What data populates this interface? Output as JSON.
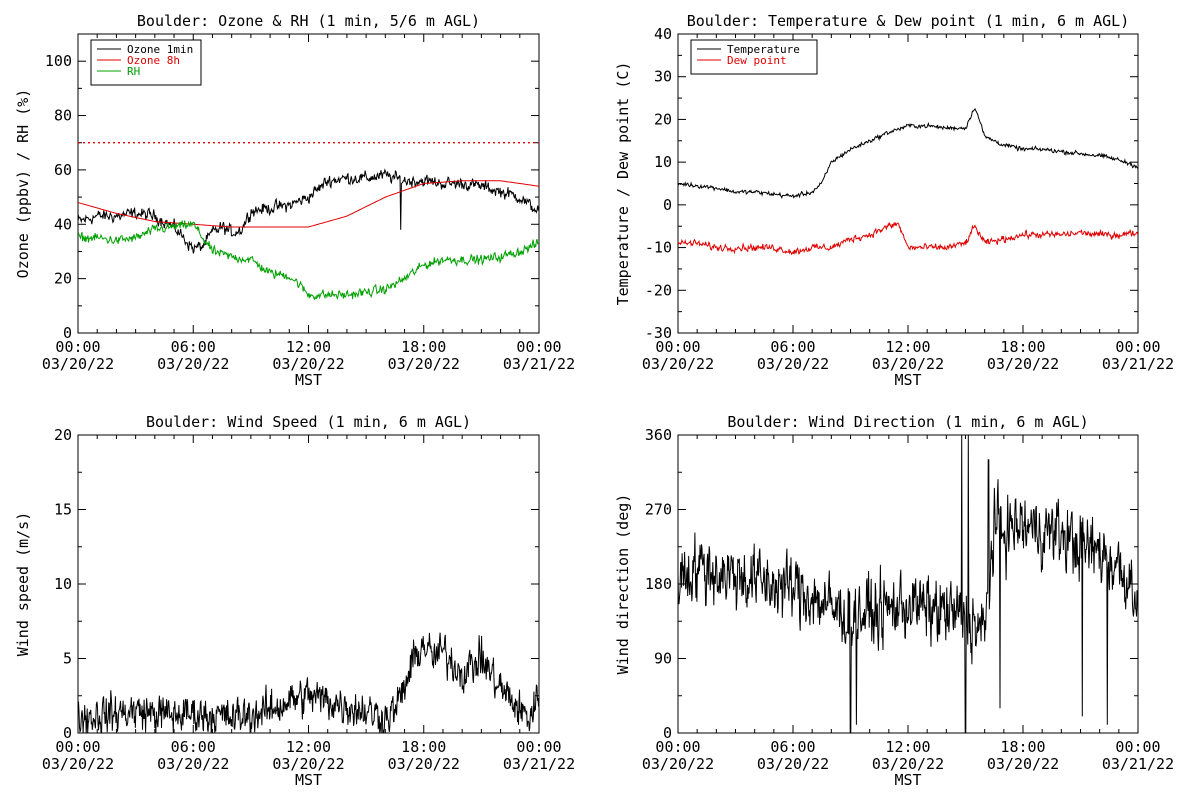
{
  "colors": {
    "black": "#000000",
    "red": "#e00000",
    "green": "#00a000"
  },
  "chart_data": [
    {
      "type": "line",
      "title": "Boulder: Ozone & RH (1 min, 5/6 m AGL)",
      "xlabel": "MST",
      "ylabel": "Ozone (ppbv) / RH (%)",
      "xlim": [
        0,
        24
      ],
      "ylim": [
        0,
        110
      ],
      "yticks": [
        0,
        20,
        40,
        60,
        80,
        100
      ],
      "xticks": [
        {
          "t1": "00:00",
          "t2": "03/20/22"
        },
        {
          "t1": "06:00",
          "t2": "03/20/22"
        },
        {
          "t1": "12:00",
          "t2": "03/20/22"
        },
        {
          "t1": "18:00",
          "t2": "03/20/22"
        },
        {
          "t1": "00:00",
          "t2": "03/21/22"
        }
      ],
      "reference_line": {
        "y": 70,
        "color": "#e00000",
        "style": "dotted"
      },
      "legend": "top-left",
      "series": [
        {
          "name": "Ozone 1min",
          "color": "#000000",
          "x": [
            0,
            1,
            2,
            3,
            4,
            5,
            6,
            6.5,
            7,
            7.5,
            8,
            8.5,
            9,
            10,
            11,
            12,
            13,
            14,
            15,
            16,
            16.5,
            17,
            18,
            19,
            20,
            21,
            22,
            23,
            23.5,
            24
          ],
          "y": [
            41,
            43,
            43,
            44,
            43,
            39,
            31,
            32,
            37,
            39,
            37,
            38,
            45,
            46,
            47,
            50,
            56,
            57,
            57,
            58,
            57,
            56,
            56,
            55,
            55,
            54,
            52,
            50,
            47,
            45
          ]
        },
        {
          "name": "Ozone 8h",
          "color": "#e00000",
          "x": [
            0,
            2,
            4,
            6,
            8,
            10,
            12,
            14,
            16,
            18,
            20,
            22,
            24
          ],
          "y": [
            48,
            44,
            41,
            40,
            39,
            39,
            39,
            43,
            50,
            55,
            56,
            56,
            54
          ]
        },
        {
          "name": "RH",
          "color": "#00a000",
          "x": [
            0,
            1,
            2,
            3,
            4,
            5,
            6,
            7,
            8,
            9,
            10,
            11,
            11.5,
            12,
            13,
            14,
            15,
            16,
            17,
            18,
            19,
            20,
            21,
            22,
            23,
            24
          ],
          "y": [
            35,
            35,
            34,
            35,
            38,
            39,
            40,
            30,
            28,
            27,
            22,
            21,
            18,
            14,
            14,
            14,
            15,
            16,
            20,
            25,
            27,
            27,
            27,
            28,
            30,
            33
          ]
        }
      ]
    },
    {
      "type": "line",
      "title": "Boulder: Temperature & Dew point (1 min, 6 m AGL)",
      "xlabel": "MST",
      "ylabel": "Temperature / Dew point (C)",
      "xlim": [
        0,
        24
      ],
      "ylim": [
        -30,
        40
      ],
      "yticks": [
        -30,
        -20,
        -10,
        0,
        10,
        20,
        30,
        40
      ],
      "xticks": [
        {
          "t1": "00:00",
          "t2": "03/20/22"
        },
        {
          "t1": "06:00",
          "t2": "03/20/22"
        },
        {
          "t1": "12:00",
          "t2": "03/20/22"
        },
        {
          "t1": "18:00",
          "t2": "03/20/22"
        },
        {
          "t1": "00:00",
          "t2": "03/21/22"
        }
      ],
      "legend": "top-left",
      "series": [
        {
          "name": "Temperature",
          "color": "#000000",
          "x": [
            0,
            1,
            2,
            3,
            4,
            5,
            6,
            7,
            7.5,
            8,
            9,
            10,
            11,
            12,
            13,
            14,
            15,
            15.5,
            16,
            17,
            18,
            19,
            20,
            21,
            22,
            23,
            24
          ],
          "y": [
            5,
            4.5,
            4,
            3,
            3,
            2.5,
            2,
            3,
            5,
            10,
            13,
            15,
            17,
            18.5,
            18.5,
            18,
            18,
            23,
            16,
            14,
            13,
            13,
            12.5,
            12,
            11.5,
            10.5,
            9
          ]
        },
        {
          "name": "Dew point",
          "color": "#e00000",
          "x": [
            0,
            1,
            2,
            3,
            4,
            5,
            6,
            7,
            8,
            9,
            10,
            11,
            11.5,
            12,
            13,
            14,
            15,
            15.5,
            16,
            17,
            18,
            19,
            20,
            21,
            22,
            23,
            24
          ],
          "y": [
            -9,
            -9,
            -10,
            -10,
            -10,
            -10,
            -11,
            -10,
            -10,
            -8,
            -7,
            -5,
            -4.5,
            -10,
            -10,
            -10,
            -9,
            -5,
            -9,
            -8,
            -7,
            -7,
            -7,
            -6.5,
            -7,
            -7,
            -6.5
          ]
        }
      ]
    },
    {
      "type": "line",
      "title": "Boulder: Wind Speed (1 min, 6 m AGL)",
      "xlabel": "MST",
      "ylabel": "Wind speed (m/s)",
      "xlim": [
        0,
        24
      ],
      "ylim": [
        0,
        20
      ],
      "yticks": [
        0,
        5,
        10,
        15,
        20
      ],
      "xticks": [
        {
          "t1": "00:00",
          "t2": "03/20/22"
        },
        {
          "t1": "06:00",
          "t2": "03/20/22"
        },
        {
          "t1": "12:00",
          "t2": "03/20/22"
        },
        {
          "t1": "18:00",
          "t2": "03/20/22"
        },
        {
          "t1": "00:00",
          "t2": "03/21/22"
        }
      ],
      "series": [
        {
          "name": "",
          "color": "#000000",
          "x": [
            0,
            1,
            2,
            3,
            4,
            5,
            6,
            7,
            8,
            9,
            10,
            11,
            12,
            13,
            14,
            15,
            16,
            16.5,
            17,
            17.5,
            18,
            18.5,
            19,
            20,
            21,
            22,
            23,
            23.5,
            24
          ],
          "y": [
            1,
            1.2,
            1.3,
            1.5,
            1.3,
            1.2,
            1.3,
            1.2,
            1,
            1.2,
            1.5,
            2.2,
            2.5,
            2.2,
            1.8,
            1.5,
            1,
            1.5,
            3,
            5,
            6,
            5,
            5.5,
            4,
            5,
            3,
            1.5,
            1,
            2.5
          ]
        }
      ]
    },
    {
      "type": "line",
      "title": "Boulder: Wind Direction (1 min, 6 m AGL)",
      "xlabel": "MST",
      "ylabel": "Wind direction (deg)",
      "xlim": [
        0,
        24
      ],
      "ylim": [
        0,
        360
      ],
      "yticks": [
        0,
        90,
        180,
        270,
        360
      ],
      "xticks": [
        {
          "t1": "00:00",
          "t2": "03/20/22"
        },
        {
          "t1": "06:00",
          "t2": "03/20/22"
        },
        {
          "t1": "12:00",
          "t2": "03/20/22"
        },
        {
          "t1": "18:00",
          "t2": "03/20/22"
        },
        {
          "t1": "00:00",
          "t2": "03/21/22"
        }
      ],
      "series": [
        {
          "name": "",
          "color": "#000000",
          "x": [
            0,
            1,
            2,
            3,
            4,
            5,
            6,
            7,
            8,
            9,
            10,
            11,
            12,
            13,
            14,
            15,
            16,
            16.5,
            17,
            18,
            19,
            20,
            21,
            22,
            23,
            24
          ],
          "y": [
            190,
            200,
            195,
            190,
            185,
            180,
            175,
            165,
            150,
            140,
            145,
            150,
            155,
            150,
            145,
            140,
            120,
            250,
            245,
            250,
            245,
            240,
            225,
            220,
            200,
            170
          ]
        }
      ]
    }
  ]
}
